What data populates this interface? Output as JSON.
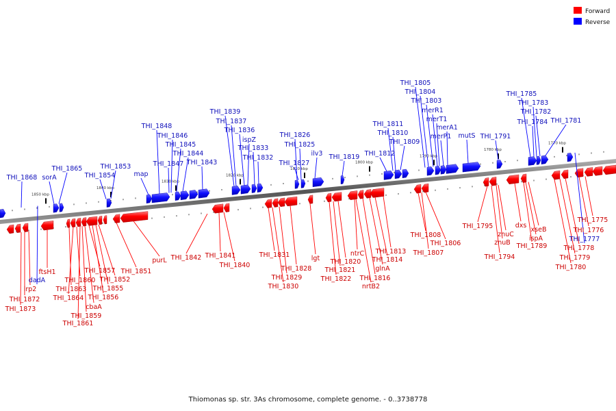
{
  "legend": {
    "items": [
      {
        "label": "Forward",
        "color": "#ff0000"
      },
      {
        "label": "Reverse",
        "color": "#0000ff"
      }
    ]
  },
  "caption": "Thiomonas sp. str. 3As chromosome, complete genome. - 0..3738778",
  "colors": {
    "forward": "#ff0000",
    "reverse": "#0000ff",
    "forward_label": "#cc0000",
    "reverse_label": "#1010bb",
    "axis": "#666666"
  },
  "kbp_marks": [
    "1850 kbp",
    "1840 kbp",
    "1830 kbp",
    "1820 kbp",
    "1810 kbp",
    "1800 kbp",
    "1790 kbp",
    "1780 kbp",
    "1770 kbp"
  ],
  "forward_labels": [
    "THI_1873",
    "THI_1872",
    "lrp2",
    "ftsH1",
    "THI_1863",
    "THI_1864",
    "THI_1860",
    "THI_1861",
    "THI_1859",
    "cbaA",
    "THI_1857",
    "THI_1856",
    "THI_1855",
    "THI_1852",
    "THI_1851",
    "purL",
    "THI_1842",
    "THI_1841",
    "THI_1840",
    "THI_1831",
    "THI_1830",
    "THI_1829",
    "THI_1828",
    "lgt",
    "THI_1822",
    "THI_1821",
    "THI_1820",
    "ntrC",
    "nrtB2",
    "THI_1816",
    "glnA",
    "THI_1814",
    "THI_1813",
    "THI_1808",
    "THI_1807",
    "THI_1806",
    "THI_1795",
    "THI_1794",
    "znuB",
    "znuC",
    "dxs",
    "THI_1789",
    "ispA",
    "xseB",
    "THI_1780",
    "THI_1779",
    "THI_1778",
    "THI_1776",
    "THI_1775"
  ],
  "reverse_labels": [
    "THI_1868",
    "sorA",
    "THI_1865",
    "dadA",
    "THI_1854",
    "THI_1853",
    "map",
    "THI_1848",
    "THI_1847",
    "THI_1846",
    "THI_1845",
    "THI_1844",
    "THI_1843",
    "THI_1839",
    "THI_1837",
    "THI_1836",
    "ispZ",
    "THI_1833",
    "THI_1832",
    "THI_1827",
    "THI_1826",
    "THI_1825",
    "ilv3",
    "THI_1819",
    "THI_1812",
    "THI_1811",
    "THI_1810",
    "THI_1809",
    "THI_1805",
    "THI_1804",
    "THI_1803",
    "merR1",
    "merT1",
    "merP1",
    "merA1",
    "mutS",
    "THI_1791",
    "THI_1785",
    "THI_1784",
    "THI_1783",
    "THI_1782",
    "THI_1781",
    "THI_1777"
  ]
}
